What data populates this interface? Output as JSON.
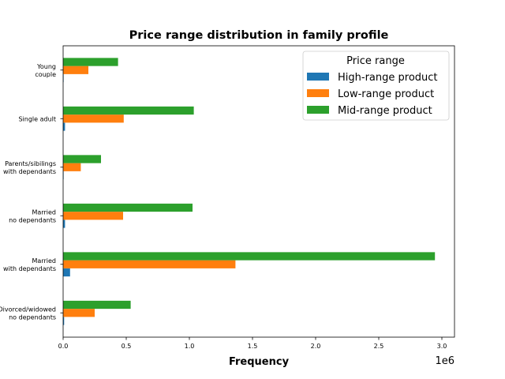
{
  "chart_data": {
    "type": "bar",
    "orientation": "horizontal",
    "title": "Price range distribution in family profile",
    "xlabel": "Frequency",
    "ylabel": "",
    "x_offset_label": "1e6",
    "xlim": [
      0,
      3.1
    ],
    "x_ticks": [
      0.0,
      0.5,
      1.0,
      1.5,
      2.0,
      2.5,
      3.0
    ],
    "x_tick_labels": [
      "0.0",
      "0.5",
      "1.0",
      "1.5",
      "2.0",
      "2.5",
      "3.0"
    ],
    "x_scale_factor": 1000000,
    "grid": false,
    "categories": [
      [
        "Young",
        "couple"
      ],
      [
        "Single adult"
      ],
      [
        "Parents/sibilings",
        "with dependants"
      ],
      [
        "Married",
        "no dependants"
      ],
      [
        "Married",
        "with dependants"
      ],
      [
        "Divorced/widowed",
        "no dependants"
      ]
    ],
    "series": [
      {
        "name": "High-range product",
        "color": "#1f77b4",
        "values": [
          0.002,
          0.015,
          0.003,
          0.015,
          0.055,
          0.008
        ]
      },
      {
        "name": "Low-range product",
        "color": "#ff7f0e",
        "values": [
          0.2,
          0.48,
          0.14,
          0.475,
          1.365,
          0.25
        ]
      },
      {
        "name": "Mid-range product",
        "color": "#2ca02c",
        "values": [
          0.435,
          1.035,
          0.3,
          1.025,
          2.945,
          0.535
        ]
      }
    ],
    "legend": {
      "title": "Price range",
      "position": "top-right"
    }
  }
}
